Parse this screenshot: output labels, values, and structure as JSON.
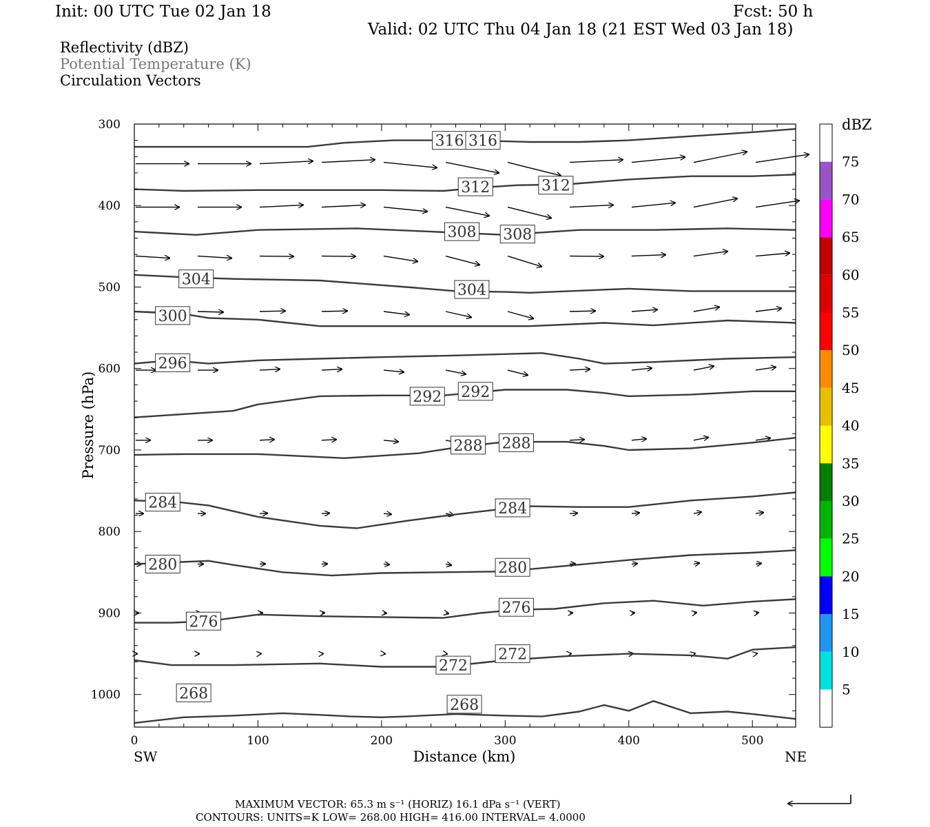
{
  "header": {
    "init": "Init: 00 UTC Tue 02 Jan 18",
    "fcst": "Fcst:   50 h",
    "valid": "Valid: 02 UTC Thu 04 Jan 18 (21 EST Wed 03 Jan 18)"
  },
  "legend_lines": {
    "reflectivity": "Reflectivity (dBZ)",
    "theta": "Potential Temperature (K)",
    "vectors": "Circulation Vectors"
  },
  "footer": {
    "max_vector": "MAXIMUM VECTOR:  65.3 m s⁻¹ (HORIZ)        16.1 dPa s⁻¹ (VERT)",
    "contours": "CONTOURS:  UNITS=K  LOW=  268.00       HIGH=  416.00       INTERVAL=    4.0000"
  },
  "chart_data": {
    "type": "line",
    "xlabel": "Distance (km)",
    "ylabel": "Pressure (hPa)",
    "xlim": [
      0,
      535
    ],
    "ylim": [
      1040,
      300
    ],
    "y_scale": "reversed",
    "x_ticks": [
      0,
      100,
      200,
      300,
      400,
      500
    ],
    "y_ticks": [
      300,
      400,
      500,
      600,
      700,
      800,
      900,
      1000
    ],
    "x_end_labels": {
      "left": "SW",
      "right": "NE"
    },
    "colors": {
      "contour": "#3a3a3a",
      "vector": "#000000"
    },
    "colorbar": {
      "label": "dBZ",
      "levels": [
        75,
        70,
        65,
        60,
        55,
        50,
        45,
        40,
        35,
        30,
        25,
        20,
        15,
        10,
        5
      ],
      "level_labels": [
        "75",
        "70",
        "65",
        "60",
        "55",
        "50",
        "45",
        "40",
        "35",
        "30",
        "25",
        "20",
        "15",
        "10",
        "5"
      ],
      "colors": [
        "#ffffff",
        "#9955c8",
        "#ff00ff",
        "#c00000",
        "#dd0000",
        "#ff0000",
        "#ff8c00",
        "#e6c000",
        "#ffff00",
        "#008000",
        "#00b400",
        "#00ff00",
        "#0000ff",
        "#1e96f0",
        "#00e0e0",
        "#ffffff"
      ]
    },
    "series": [
      {
        "name": "316",
        "labels": [
          [
            255,
            320
          ],
          [
            282,
            320
          ]
        ],
        "points": [
          [
            0,
            328
          ],
          [
            100,
            328
          ],
          [
            140,
            328
          ],
          [
            170,
            323
          ],
          [
            210,
            320
          ],
          [
            270,
            320
          ],
          [
            320,
            322
          ],
          [
            360,
            322
          ],
          [
            400,
            320
          ],
          [
            450,
            315
          ],
          [
            500,
            310
          ],
          [
            535,
            306
          ]
        ]
      },
      {
        "name": "312",
        "labels": [
          [
            276,
            377
          ],
          [
            341,
            375
          ]
        ],
        "points": [
          [
            0,
            380
          ],
          [
            40,
            382
          ],
          [
            100,
            381
          ],
          [
            200,
            381
          ],
          [
            250,
            382
          ],
          [
            280,
            378
          ],
          [
            310,
            375
          ],
          [
            350,
            374
          ],
          [
            400,
            368
          ],
          [
            450,
            364
          ],
          [
            500,
            364
          ],
          [
            535,
            362
          ]
        ]
      },
      {
        "name": "308",
        "labels": [
          [
            265,
            432
          ],
          [
            310,
            435
          ]
        ],
        "points": [
          [
            0,
            432
          ],
          [
            50,
            436
          ],
          [
            100,
            430
          ],
          [
            180,
            428
          ],
          [
            240,
            432
          ],
          [
            300,
            436
          ],
          [
            360,
            430
          ],
          [
            420,
            430
          ],
          [
            480,
            428
          ],
          [
            535,
            430
          ]
        ]
      },
      {
        "name": "304",
        "labels": [
          [
            50,
            490
          ],
          [
            273,
            503
          ]
        ],
        "points": [
          [
            0,
            485
          ],
          [
            40,
            488
          ],
          [
            80,
            490
          ],
          [
            150,
            492
          ],
          [
            220,
            500
          ],
          [
            260,
            505
          ],
          [
            300,
            506
          ],
          [
            320,
            507
          ],
          [
            400,
            502
          ],
          [
            450,
            505
          ],
          [
            535,
            505
          ]
        ]
      },
      {
        "name": "300",
        "labels": [
          [
            31,
            535
          ]
        ],
        "points": [
          [
            0,
            530
          ],
          [
            40,
            533
          ],
          [
            60,
            538
          ],
          [
            100,
            540
          ],
          [
            150,
            548
          ],
          [
            200,
            548
          ],
          [
            260,
            548
          ],
          [
            320,
            548
          ],
          [
            380,
            544
          ],
          [
            420,
            547
          ],
          [
            480,
            541
          ],
          [
            535,
            544
          ]
        ]
      },
      {
        "name": "296",
        "labels": [
          [
            31,
            593
          ]
        ],
        "points": [
          [
            0,
            594
          ],
          [
            30,
            590
          ],
          [
            60,
            594
          ],
          [
            100,
            590
          ],
          [
            150,
            588
          ],
          [
            200,
            586
          ],
          [
            260,
            584
          ],
          [
            330,
            581
          ],
          [
            360,
            588
          ],
          [
            380,
            594
          ],
          [
            420,
            592
          ],
          [
            480,
            588
          ],
          [
            535,
            586
          ]
        ]
      },
      {
        "name": "292",
        "labels": [
          [
            237,
            634
          ],
          [
            276,
            628
          ]
        ],
        "points": [
          [
            0,
            660
          ],
          [
            40,
            656
          ],
          [
            80,
            652
          ],
          [
            100,
            644
          ],
          [
            150,
            634
          ],
          [
            200,
            633
          ],
          [
            250,
            633
          ],
          [
            300,
            626
          ],
          [
            350,
            626
          ],
          [
            380,
            630
          ],
          [
            400,
            634
          ],
          [
            450,
            632
          ],
          [
            500,
            628
          ],
          [
            535,
            628
          ]
        ]
      },
      {
        "name": "288",
        "labels": [
          [
            270,
            694
          ],
          [
            309,
            691
          ]
        ],
        "points": [
          [
            0,
            706
          ],
          [
            40,
            705
          ],
          [
            100,
            705
          ],
          [
            170,
            710
          ],
          [
            230,
            704
          ],
          [
            260,
            697
          ],
          [
            300,
            690
          ],
          [
            350,
            690
          ],
          [
            380,
            695
          ],
          [
            400,
            700
          ],
          [
            450,
            698
          ],
          [
            500,
            691
          ],
          [
            535,
            685
          ]
        ]
      },
      {
        "name": "284",
        "labels": [
          [
            23,
            764
          ],
          [
            306,
            771
          ]
        ],
        "points": [
          [
            0,
            762
          ],
          [
            30,
            763
          ],
          [
            60,
            768
          ],
          [
            100,
            782
          ],
          [
            150,
            793
          ],
          [
            180,
            796
          ],
          [
            220,
            787
          ],
          [
            260,
            779
          ],
          [
            300,
            772
          ],
          [
            320,
            769
          ],
          [
            360,
            770
          ],
          [
            400,
            770
          ],
          [
            450,
            762
          ],
          [
            500,
            757
          ],
          [
            535,
            752
          ]
        ]
      },
      {
        "name": "280",
        "labels": [
          [
            23,
            840
          ],
          [
            306,
            844
          ]
        ],
        "points": [
          [
            0,
            840
          ],
          [
            30,
            838
          ],
          [
            60,
            836
          ],
          [
            80,
            841
          ],
          [
            120,
            850
          ],
          [
            160,
            854
          ],
          [
            200,
            851
          ],
          [
            250,
            850
          ],
          [
            300,
            849
          ],
          [
            350,
            842
          ],
          [
            400,
            835
          ],
          [
            450,
            829
          ],
          [
            500,
            826
          ],
          [
            535,
            823
          ]
        ]
      },
      {
        "name": "276",
        "labels": [
          [
            56,
            910
          ],
          [
            309,
            893
          ]
        ],
        "points": [
          [
            0,
            912
          ],
          [
            30,
            912
          ],
          [
            60,
            910
          ],
          [
            100,
            902
          ],
          [
            150,
            904
          ],
          [
            200,
            905
          ],
          [
            250,
            906
          ],
          [
            280,
            900
          ],
          [
            310,
            896
          ],
          [
            340,
            895
          ],
          [
            380,
            888
          ],
          [
            420,
            885
          ],
          [
            460,
            891
          ],
          [
            500,
            886
          ],
          [
            535,
            883
          ]
        ]
      },
      {
        "name": "272",
        "labels": [
          [
            258,
            964
          ],
          [
            306,
            950
          ]
        ],
        "points": [
          [
            0,
            958
          ],
          [
            30,
            964
          ],
          [
            80,
            964
          ],
          [
            150,
            962
          ],
          [
            200,
            966
          ],
          [
            250,
            966
          ],
          [
            300,
            958
          ],
          [
            350,
            953
          ],
          [
            400,
            950
          ],
          [
            450,
            952
          ],
          [
            480,
            956
          ],
          [
            500,
            945
          ],
          [
            535,
            942
          ]
        ]
      },
      {
        "name": "268",
        "labels": [
          [
            48,
            998
          ],
          [
            267,
            1012
          ]
        ],
        "points": [
          [
            0,
            1035
          ],
          [
            40,
            1028
          ],
          [
            80,
            1026
          ],
          [
            120,
            1023
          ],
          [
            150,
            1025
          ],
          [
            175,
            1027
          ],
          [
            200,
            1028
          ],
          [
            220,
            1027
          ],
          [
            260,
            1024
          ],
          [
            300,
            1026
          ],
          [
            330,
            1027
          ],
          [
            360,
            1021
          ],
          [
            380,
            1013
          ],
          [
            400,
            1020
          ],
          [
            420,
            1008
          ],
          [
            450,
            1023
          ],
          [
            480,
            1021
          ],
          [
            500,
            1024
          ],
          [
            535,
            1030
          ]
        ]
      }
    ]
  }
}
